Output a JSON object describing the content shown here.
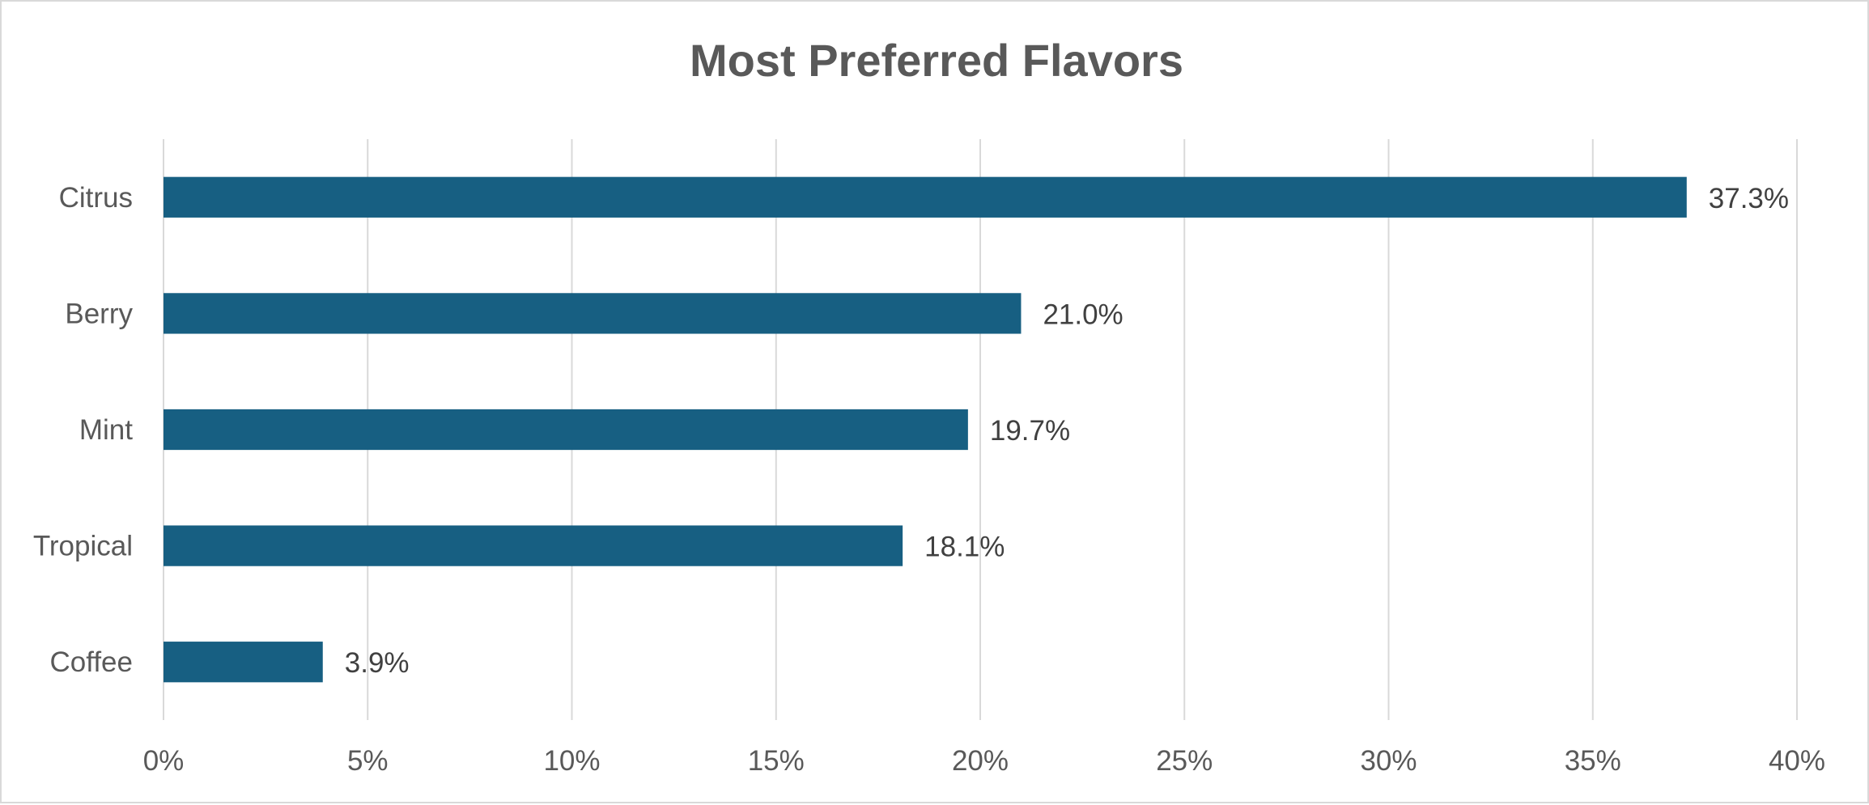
{
  "chart_data": {
    "type": "bar",
    "orientation": "horizontal",
    "title": "Most Preferred  Flavors",
    "categories": [
      "Citrus",
      "Berry",
      "Mint",
      "Tropical",
      "Coffee"
    ],
    "values": [
      37.3,
      21.0,
      19.7,
      18.1,
      3.9
    ],
    "data_labels": [
      "37.3%",
      "21.0%",
      "19.7%",
      "18.1%",
      "3.9%"
    ],
    "xlim": [
      0,
      40
    ],
    "x_ticks": [
      0,
      5,
      10,
      15,
      20,
      25,
      30,
      35,
      40
    ],
    "x_tick_labels": [
      "0%",
      "5%",
      "10%",
      "15%",
      "20%",
      "25%",
      "30%",
      "35%",
      "40%"
    ],
    "xlabel": "",
    "ylabel": "",
    "grid": "vertical",
    "legend": "none",
    "colors": {
      "bar": "#175f82",
      "grid": "#d9d9d9",
      "text": "#595959",
      "border": "#d9d9d9"
    }
  }
}
